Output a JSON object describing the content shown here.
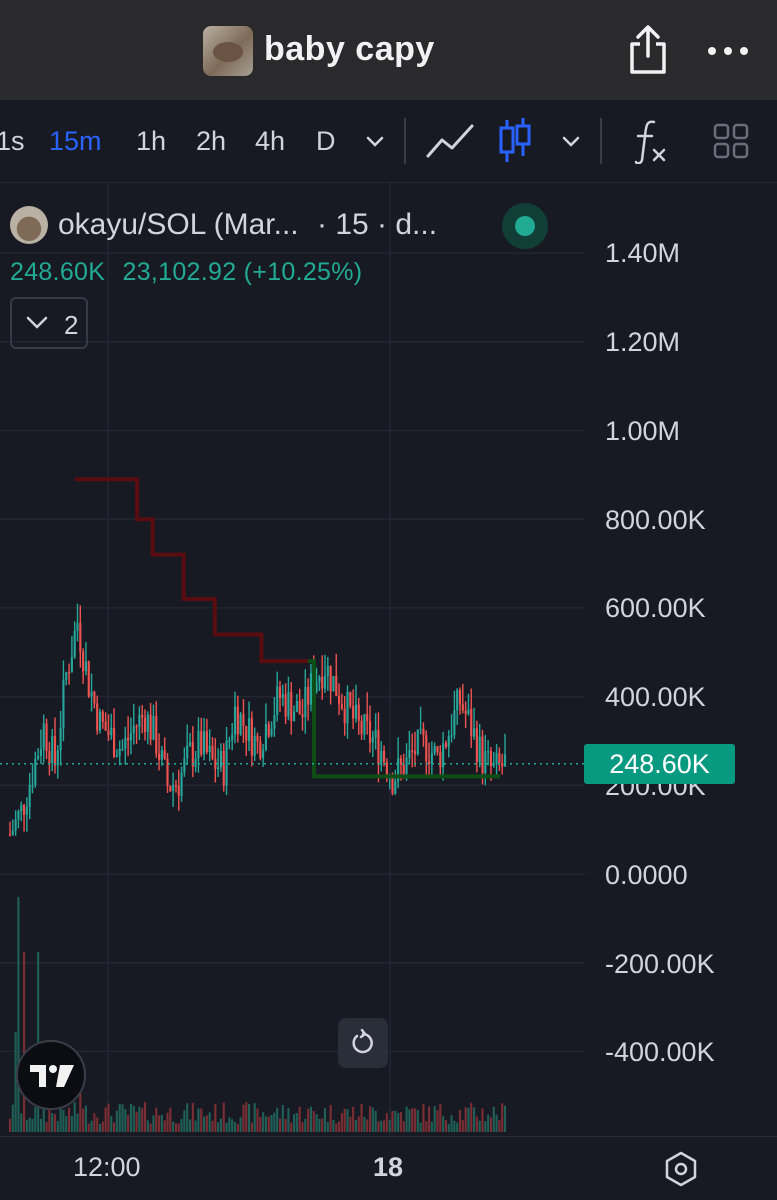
{
  "header": {
    "title": "baby capy",
    "share_icon": "share-icon",
    "more_icon": "more-dots-icon"
  },
  "timeframes": [
    "1s",
    "15m",
    "1h",
    "2h",
    "4h",
    "D"
  ],
  "active_timeframe": "15m",
  "toolbar": {
    "line_chart_icon": "line-chart-icon",
    "candle_icon": "candlestick-icon",
    "indicators_icon": "fx-indicators-icon",
    "layout_icon": "grid-layout-icon"
  },
  "legend": {
    "title": "okayu/SOL (Mar...",
    "interval": "· 15 · d...",
    "last_value": "248.60K",
    "change_text": "23,102.92 (+10.25%)",
    "collapsed_count": "2"
  },
  "price_tag": "248.60K",
  "x_axis": {
    "label_1": "12:00",
    "label_2": "18"
  },
  "colors": {
    "up": "#26a69a",
    "down": "#ef5350",
    "accent": "#2962ff",
    "price_tag": "#089981",
    "resistance": "#5a0d10",
    "support": "#0f4d16"
  },
  "chart_data": {
    "type": "candlestick",
    "y_ticks": [
      "1.40M",
      "1.20M",
      "1.00M",
      "800.00K",
      "600.00K",
      "400.00K",
      "200.00K",
      "0.0000",
      "-200.00K",
      "-400.00K"
    ],
    "ylim": [
      -520000,
      1450000
    ],
    "last_price": 248600,
    "x_tick_labels": [
      "12:00",
      "18"
    ],
    "candles_summary": {
      "min_low": 60000,
      "max_high": 730000
    },
    "series": [
      {
        "name": "",
        "values": [
          90000,
          140000,
          230000,
          330000,
          250000,
          450000,
          570000,
          430000,
          340000,
          310000,
          280000,
          330000,
          360000,
          300000,
          200000,
          210000,
          270000,
          290000,
          250000,
          240000,
          370000,
          330000,
          290000,
          350000,
          400000,
          380000,
          360000,
          440000,
          470000,
          420000,
          370000,
          330000,
          310000,
          280000,
          220000,
          240000,
          280000,
          290000,
          260000,
          320000,
          390000,
          330000,
          260000,
          230000,
          248600
        ]
      }
    ],
    "overlay_lines": [
      {
        "name": "",
        "points": [
          [
            0,
            890000
          ],
          [
            8,
            800000
          ],
          [
            10,
            720000
          ],
          [
            14,
            620000
          ],
          [
            18,
            540000
          ],
          [
            24,
            480000
          ],
          [
            30,
            480000
          ]
        ]
      },
      {
        "name": "",
        "points": [
          [
            30,
            480000
          ],
          [
            31,
            220000
          ],
          [
            44,
            220000
          ]
        ]
      }
    ]
  }
}
